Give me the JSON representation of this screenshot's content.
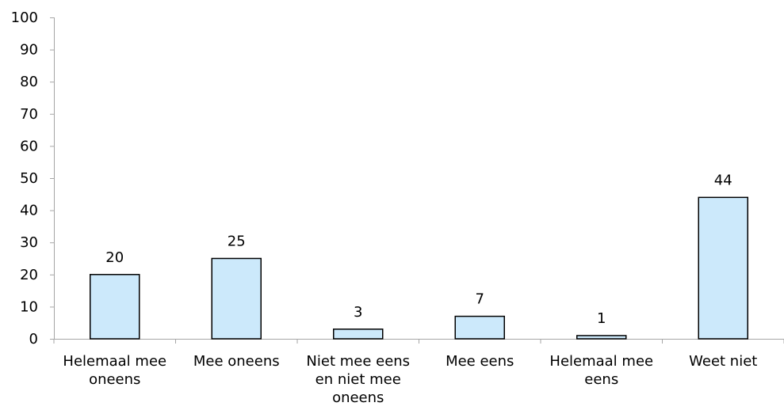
{
  "chart_data": {
    "type": "bar",
    "title": "",
    "xlabel": "",
    "ylabel": "",
    "categories": [
      [
        "Helemaal mee",
        "oneens"
      ],
      [
        "Mee oneens"
      ],
      [
        "Niet mee eens",
        "en niet mee",
        "oneens"
      ],
      [
        "Mee eens"
      ],
      [
        "Helemaal mee",
        "eens"
      ],
      [
        "Weet niet"
      ]
    ],
    "values": [
      20,
      25,
      3,
      7,
      1,
      44
    ],
    "data_labels": [
      "20",
      "25",
      "3",
      "7",
      "1",
      "44"
    ],
    "ylim": [
      0,
      100
    ],
    "yticks": [
      0,
      10,
      20,
      30,
      40,
      50,
      60,
      70,
      80,
      90,
      100
    ],
    "ytick_labels": [
      "0",
      "10",
      "20",
      "30",
      "40",
      "50",
      "60",
      "70",
      "80",
      "90",
      "100"
    ],
    "grid": false,
    "legend": "none",
    "bar_color": "#cce9fb",
    "bar_edge_color": "#000000"
  }
}
